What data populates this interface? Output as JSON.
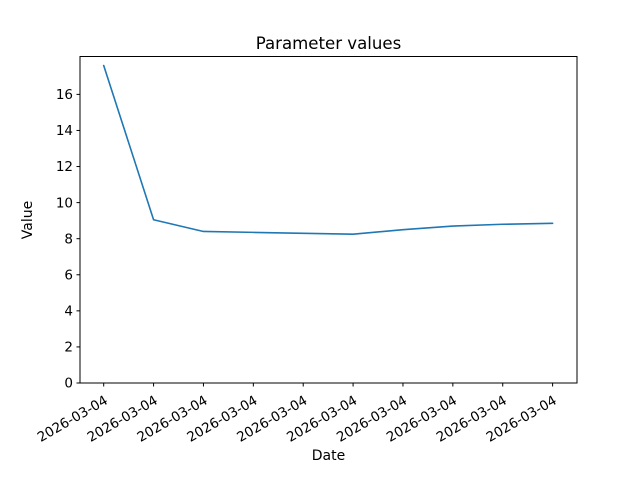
{
  "figure": {
    "background": "#ffffff"
  },
  "chart_data": {
    "type": "line",
    "title": "Parameter values",
    "xlabel": "Date",
    "ylabel": "Value",
    "x_tick_labels": [
      "2026-03-04",
      "2026-03-04",
      "2026-03-04",
      "2026-03-04",
      "2026-03-04",
      "2026-03-04",
      "2026-03-04",
      "2026-03-04",
      "2026-03-04",
      "2026-03-04"
    ],
    "series": [
      {
        "name": "parameter-values",
        "values": [
          17.6,
          9.05,
          8.4,
          8.35,
          8.3,
          8.25,
          8.5,
          8.7,
          8.8,
          8.85
        ]
      }
    ],
    "y_ticks": [
      0,
      2,
      4,
      6,
      8,
      10,
      12,
      14,
      16
    ],
    "ylim": [
      0,
      18.1
    ],
    "grid": false,
    "legend": "none",
    "x_tick_rotation_deg": 30,
    "line_color": "#1f77b4",
    "axis_color": "#000000",
    "text_color": "#000000"
  }
}
